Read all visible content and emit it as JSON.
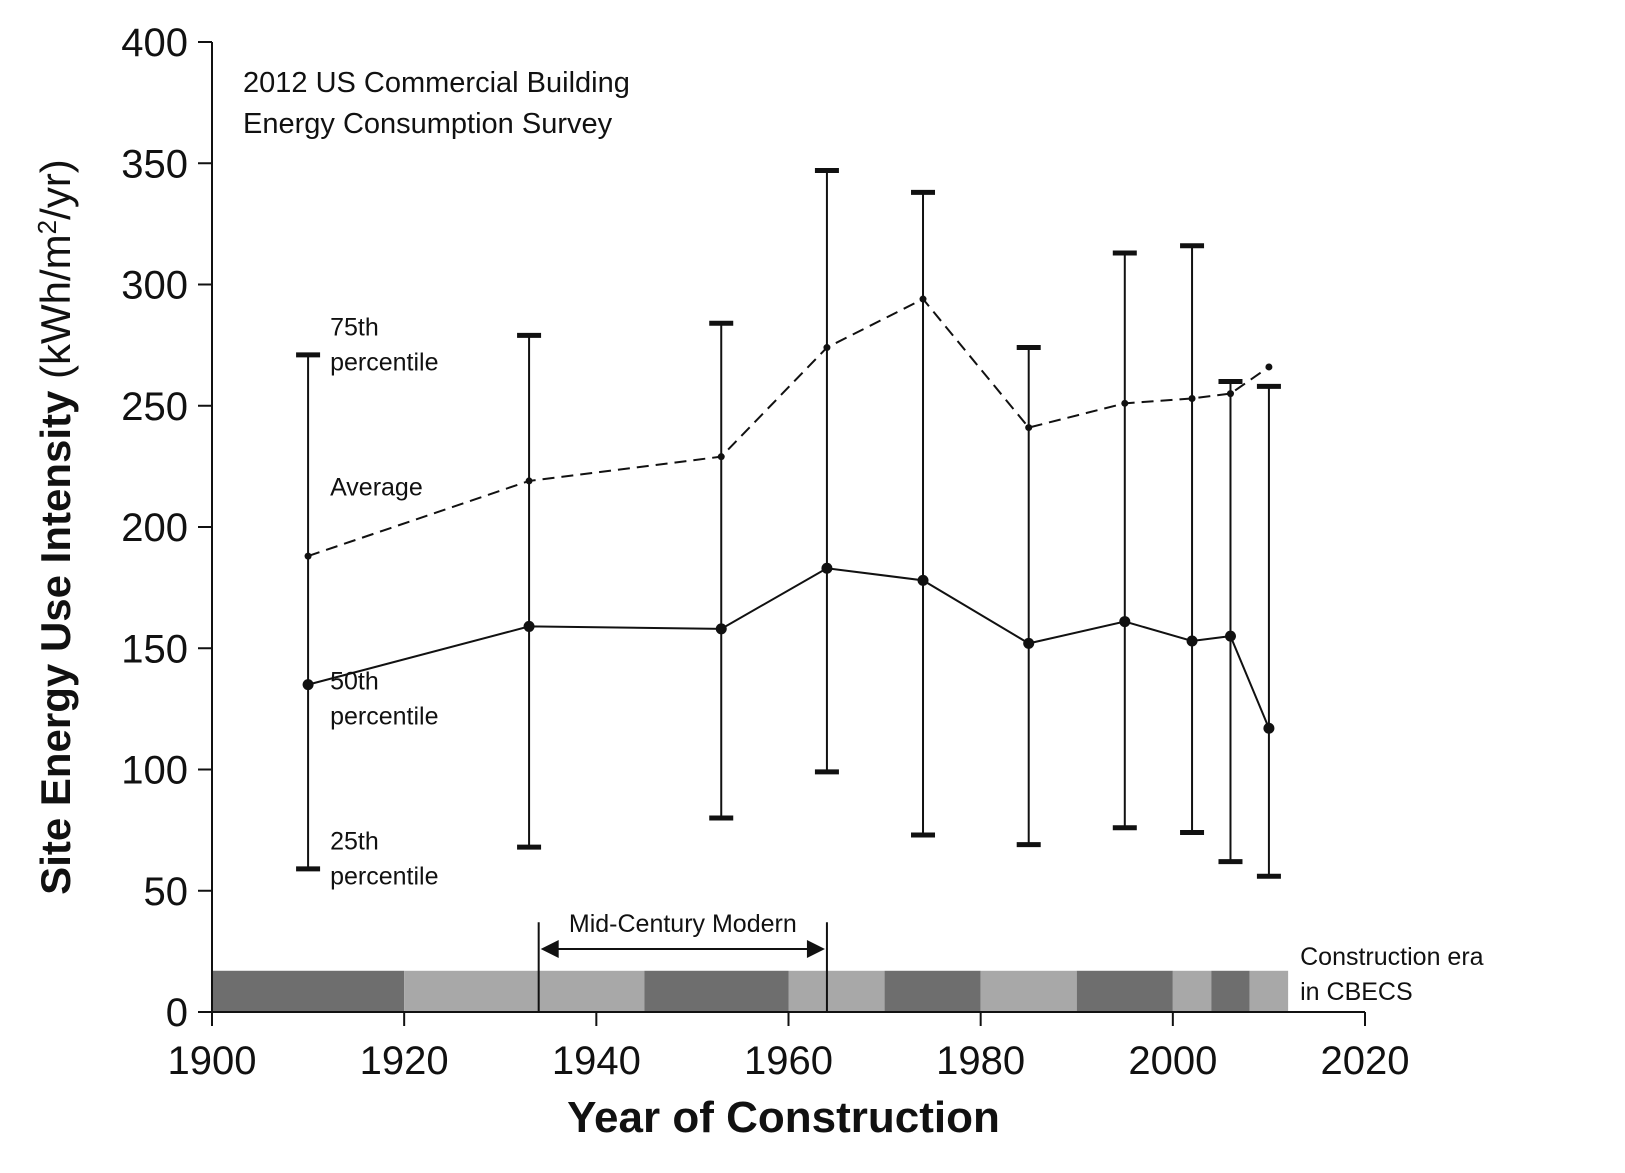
{
  "chart_data": {
    "type": "line",
    "title": [
      "2012 US Commercial Building",
      "Energy Consumption Survey"
    ],
    "xlabel": "Year of Construction",
    "ylabel_main": "Site Energy Use Intensity",
    "ylabel_unit_pre": "(kWh/m",
    "ylabel_unit_sup": "2",
    "ylabel_unit_post": "/yr)",
    "xlim": [
      1900,
      2020
    ],
    "ylim": [
      0,
      400
    ],
    "xticks": [
      1900,
      1920,
      1940,
      1960,
      1980,
      2000,
      2020
    ],
    "yticks": [
      0,
      50,
      100,
      150,
      200,
      250,
      300,
      350,
      400
    ],
    "x": [
      1910,
      1933,
      1953,
      1964,
      1974,
      1985,
      1995,
      2002,
      2006,
      2010
    ],
    "series": [
      {
        "key": "average",
        "line_style": "dashed",
        "values": [
          188,
          219,
          229,
          274,
          294,
          241,
          251,
          253,
          255,
          266
        ]
      },
      {
        "key": "median",
        "line_style": "solid",
        "values": [
          135,
          159,
          158,
          183,
          178,
          152,
          161,
          153,
          155,
          117
        ]
      }
    ],
    "error_bars": {
      "p25": [
        59,
        68,
        80,
        99,
        73,
        69,
        76,
        74,
        62,
        56
      ],
      "p75": [
        271,
        279,
        284,
        347,
        338,
        274,
        313,
        316,
        260,
        258
      ]
    },
    "series_labels": {
      "p75": [
        "75th",
        "percentile"
      ],
      "average": [
        "Average"
      ],
      "p50": [
        "50th",
        "percentile"
      ],
      "p25": [
        "25th",
        "percentile"
      ]
    },
    "construction_eras": {
      "label": [
        "Construction era",
        "in CBECS"
      ],
      "segments": [
        {
          "start": 1900,
          "end": 1920,
          "shade": "dark"
        },
        {
          "start": 1920,
          "end": 1945,
          "shade": "light"
        },
        {
          "start": 1945,
          "end": 1960,
          "shade": "dark"
        },
        {
          "start": 1960,
          "end": 1970,
          "shade": "light"
        },
        {
          "start": 1970,
          "end": 1980,
          "shade": "dark"
        },
        {
          "start": 1980,
          "end": 1990,
          "shade": "light"
        },
        {
          "start": 1990,
          "end": 2000,
          "shade": "dark"
        },
        {
          "start": 2000,
          "end": 2004,
          "shade": "light"
        },
        {
          "start": 2004,
          "end": 2008,
          "shade": "dark"
        },
        {
          "start": 2008,
          "end": 2012,
          "shade": "light"
        }
      ],
      "colors": {
        "dark": "#6e6e6e",
        "light": "#a8a8a8"
      }
    },
    "mid_century": {
      "label": "Mid-Century Modern",
      "start": 1934,
      "end": 1964
    },
    "grid": false,
    "line_color": "#111111"
  }
}
